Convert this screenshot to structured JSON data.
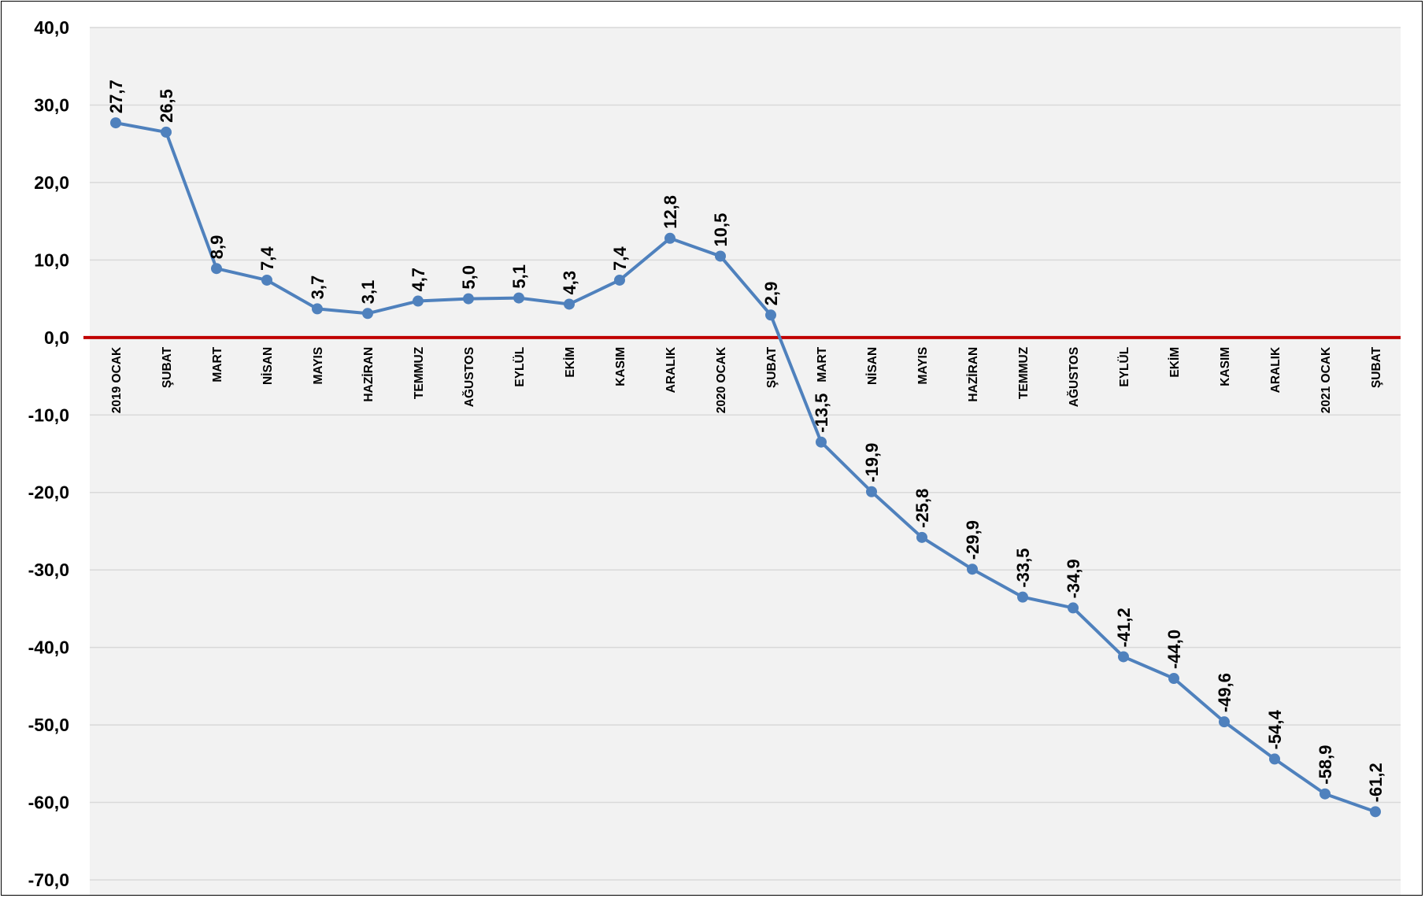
{
  "chart_data": {
    "type": "line",
    "title": "",
    "xlabel": "",
    "ylabel": "",
    "ylim": [
      -70,
      40
    ],
    "yticks": [
      40,
      30,
      20,
      10,
      0,
      -10,
      -20,
      -30,
      -40,
      -50,
      -60,
      -70
    ],
    "ytick_labels": [
      "40,0",
      "30,0",
      "20,0",
      "10,0",
      "0,0",
      "-10,0",
      "-20,0",
      "-30,0",
      "-40,0",
      "-50,0",
      "-60,0",
      "-70,0"
    ],
    "grid": true,
    "legend": "none",
    "categories": [
      "2019 OCAK",
      "ŞUBAT",
      "MART",
      "NİSAN",
      "MAYIS",
      "HAZİRAN",
      "TEMMUZ",
      "AĞUSTOS",
      "EYLÜL",
      "EKİM",
      "KASIM",
      "ARALIK",
      "2020 OCAK",
      "ŞUBAT",
      "MART",
      "NİSAN",
      "MAYIS",
      "HAZİRAN",
      "TEMMUZ",
      "AĞUSTOS",
      "EYLÜL",
      "EKİM",
      "KASIM",
      "ARALIK",
      "2021 OCAK",
      "ŞUBAT"
    ],
    "series": [
      {
        "values": [
          27.7,
          26.5,
          8.9,
          7.4,
          3.7,
          3.1,
          4.7,
          5.0,
          5.1,
          4.3,
          7.4,
          12.8,
          10.5,
          2.9,
          -13.5,
          -19.9,
          -25.8,
          -29.9,
          -33.5,
          -34.9,
          -41.2,
          -44.0,
          -49.6,
          -54.4,
          -58.9,
          -61.2
        ],
        "labels": [
          "27,7",
          "26,5",
          "8,9",
          "7,4",
          "3,7",
          "3,1",
          "4,7",
          "5,0",
          "5,1",
          "4,3",
          "7,4",
          "12,8",
          "10,5",
          "2,9",
          "-13,5",
          "-19,9",
          "-25,8",
          "-29,9",
          "-33,5",
          "-34,9",
          "-41,2",
          "-44,0",
          "-49,6",
          "-54,4",
          "-58,9",
          "-61,2"
        ]
      }
    ],
    "colors": {
      "line": "#4f81bd",
      "zero_line": "#c00000",
      "plot_background": "#f2f2f2",
      "gridline": "#d9d9d9"
    }
  }
}
